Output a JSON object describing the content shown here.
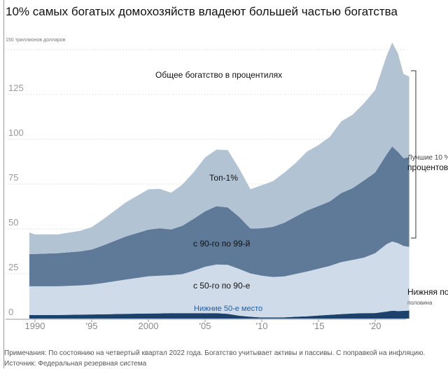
{
  "title": "10% самых богатых домохозяйств владеют большей частью богатства",
  "note": "Примечания: По состоянию на четвертый квартал 2022 года. Богатство учитывает активы и пассивы. С поправкой на инфляцию. Источник: Федеральная резервная система",
  "chart_data": {
    "type": "area",
    "stacked": true,
    "title": "10% самых богатых домохозяйств владеют большей частью богатства",
    "subtitle": "Общее богатство в процентилях",
    "unit_label": "150 триллионов долларов",
    "xlabel": "",
    "ylabel": "",
    "xlim": [
      1990,
      2023
    ],
    "ylim": [
      0,
      150
    ],
    "x_ticks": [
      "1990",
      "'95",
      "2000",
      "'05",
      "'10",
      "'15",
      "'20"
    ],
    "y_ticks": [
      "0",
      "25",
      "50",
      "75",
      "100",
      "125"
    ],
    "x": [
      1989.5,
      1990,
      1992,
      1994,
      1995,
      1996,
      1998,
      2000,
      2001,
      2002,
      2003,
      2004,
      2005,
      2006,
      2007,
      2008,
      2009,
      2010,
      2011,
      2012,
      2013,
      2014,
      2015,
      2016,
      2017,
      2018,
      2019,
      2020,
      2021,
      2021.5,
      2022,
      2022.5,
      2023
    ],
    "series": [
      {
        "name": "Нижние 50-е место",
        "values": [
          2,
          2,
          2,
          2.2,
          2.3,
          2.4,
          2.6,
          2.8,
          2.9,
          3.0,
          3.0,
          3.0,
          3.0,
          3.0,
          2.6,
          1.6,
          1.0,
          0.6,
          0.6,
          0.7,
          1.0,
          1.3,
          1.7,
          2.1,
          2.5,
          2.8,
          3.0,
          3.1,
          3.9,
          4.4,
          4.2,
          4.3,
          4.5
        ]
      },
      {
        "name": "с 50-го по 90-е",
        "values": [
          16,
          16,
          16,
          16.3,
          16.7,
          17.4,
          19.2,
          20.8,
          21.0,
          21.2,
          21.8,
          23.7,
          25.9,
          27.2,
          27.4,
          26.1,
          24.2,
          23.3,
          22.6,
          22.8,
          23.9,
          25.0,
          26.1,
          27.3,
          29.0,
          29.9,
          31.0,
          33.4,
          37.6,
          38.6,
          37.9,
          36.2,
          35.5
        ]
      },
      {
        "name": "с 90-го по 99-й",
        "values": [
          18,
          18,
          18.5,
          19,
          19.5,
          21,
          24,
          26,
          26.5,
          25.5,
          27,
          29,
          31,
          32.5,
          32,
          29,
          25,
          26.5,
          28,
          30,
          32,
          34,
          35,
          36,
          38.5,
          40,
          43,
          45,
          50,
          53,
          51,
          49,
          50
        ]
      },
      {
        "name": "Топ-1%",
        "values": [
          12,
          11,
          10.5,
          11.5,
          12.5,
          14.5,
          19,
          22.5,
          22,
          20.5,
          23,
          26,
          30,
          31.5,
          32,
          27,
          22,
          24,
          25.5,
          28,
          30,
          33,
          34,
          36,
          40,
          41,
          43,
          46,
          55,
          58,
          55,
          47,
          45
        ]
      }
    ],
    "annotations": [
      "Лучшие 10 %",
      "процентов",
      "Нижняя половина",
      "половина"
    ],
    "colors": {
      "bottom50": "#1c426c",
      "p50_90": "#cfdbe8",
      "p90_99": "#5e7a98",
      "top1": "#b2c3d4"
    }
  },
  "labels": {
    "top10": "Лучшие 10 %",
    "top10_word": "процентов",
    "bottom_half": "Нижняя половина",
    "bottom_half_word": "половина"
  }
}
